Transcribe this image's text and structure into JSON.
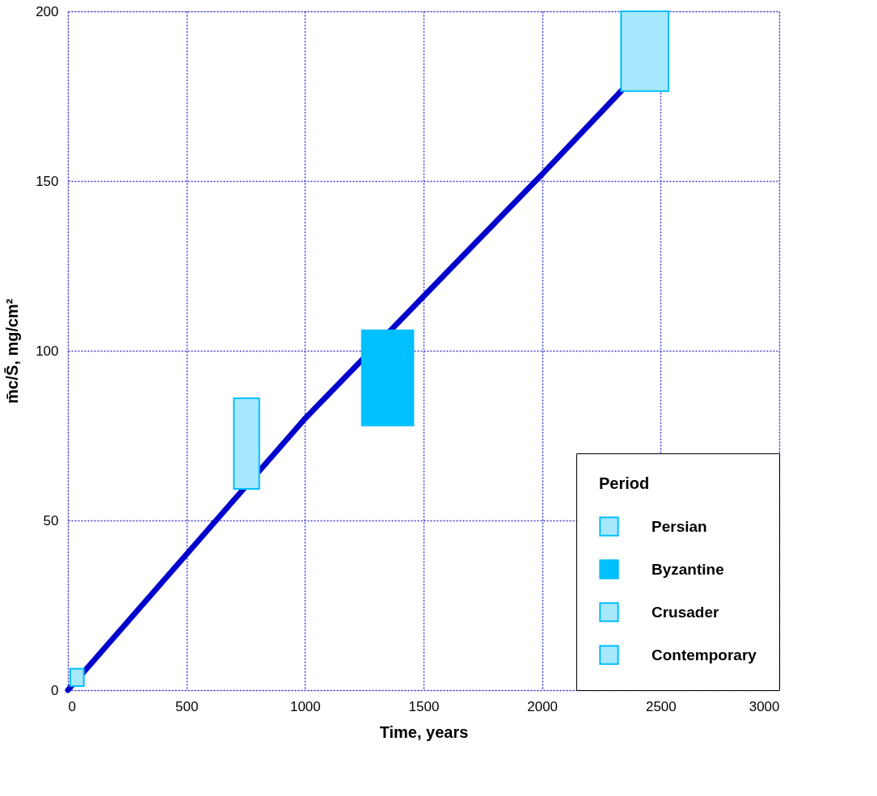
{
  "chart_data": {
    "type": "line",
    "xlabel": "Time, years",
    "ylabel": "m̄c/S̄, mg/cm²",
    "legend_title": "Period",
    "xlim": [
      0,
      3000
    ],
    "ylim": [
      0,
      200
    ],
    "xticks": [
      0,
      500,
      1000,
      1500,
      2000,
      2500,
      3000
    ],
    "yticks": [
      0,
      50,
      100,
      150,
      200
    ],
    "grid": true,
    "legend": "bottom right",
    "marker": "none",
    "line_style": "solid",
    "series": [
      {
        "color": "#0000cd",
        "x": [
          0,
          500,
          1000,
          1500,
          2000,
          2340
        ],
        "values": [
          0,
          40,
          80,
          116,
          152,
          177
        ]
      },
      {
        "name": "Persian",
        "type": "area",
        "color": "#a8e8ff",
        "x": [
          2333,
          2533
        ],
        "values": [
          null,
          null
        ],
        "lower": [
          176.5,
          176.5
        ],
        "upper": [
          200,
          200
        ]
      },
      {
        "name": "Byzantine",
        "type": "area",
        "color": "#00c0ff",
        "x": [
          1240,
          1457
        ],
        "values": [
          null,
          null
        ],
        "lower": [
          78,
          78
        ],
        "upper": [
          106,
          106
        ]
      },
      {
        "name": "Crusader",
        "type": "area",
        "color": "#a8e8ff",
        "x": [
          700,
          807
        ],
        "values": [
          null,
          null
        ],
        "lower": [
          59.3,
          59.3
        ],
        "upper": [
          86,
          86
        ]
      },
      {
        "name": "Contemporary",
        "type": "area",
        "color": "#a8e8ff",
        "x": [
          10,
          67
        ],
        "values": [
          null,
          null
        ],
        "lower": [
          1.2,
          1.2
        ],
        "upper": [
          6.3,
          6.3
        ]
      }
    ]
  }
}
